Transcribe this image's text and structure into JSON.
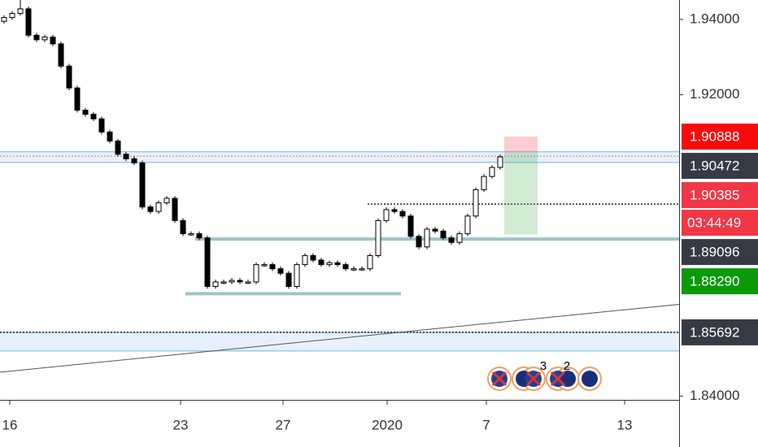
{
  "chart_data": {
    "type": "candlestick",
    "xlim": [
      0,
      83.5
    ],
    "ylim": [
      1.83899,
      1.94515
    ],
    "xticks": [
      {
        "value": 1.2,
        "label": "16"
      },
      {
        "value": 22.2,
        "label": "23"
      },
      {
        "value": 34.8,
        "label": "27"
      },
      {
        "value": 47.6,
        "label": "2020"
      },
      {
        "value": 59.8,
        "label": "7"
      },
      {
        "value": 76.8,
        "label": "13"
      }
    ],
    "yticks": [
      {
        "value": 1.94,
        "label": "1.94000"
      },
      {
        "value": 1.92,
        "label": "1.92000"
      },
      {
        "value": 1.84,
        "label": "1.84000"
      }
    ],
    "x": [
      0.5,
      1.5,
      2.5,
      3.5,
      4.5,
      5.5,
      6.5,
      7.5,
      8.5,
      9.5,
      10.5,
      11.5,
      12.5,
      13.5,
      14.5,
      15.5,
      16.5,
      17.5,
      18.5,
      19.5,
      20.5,
      21.5,
      22.5,
      23.5,
      24.5,
      25.5,
      26.5,
      27.5,
      28.5,
      29.5,
      30.5,
      31.5,
      32.5,
      33.5,
      34.5,
      35.5,
      36.5,
      37.5,
      38.5,
      39.5,
      40.5,
      41.5,
      42.5,
      43.5,
      44.5,
      45.5,
      46.5,
      47.5,
      48.5,
      49.5,
      50.5,
      51.5,
      52.5,
      53.5,
      54.5,
      55.5,
      56.5,
      57.5,
      58.5,
      59.5,
      60.5,
      61.5
    ],
    "open": [
      1.9395,
      1.9405,
      1.9416,
      1.9428,
      1.9358,
      1.9346,
      1.9353,
      1.9335,
      1.9276,
      1.9218,
      1.9159,
      1.9148,
      1.9136,
      1.9101,
      1.9077,
      1.9042,
      1.903,
      1.9019,
      1.8902,
      1.889,
      1.8913,
      1.8925,
      1.8866,
      1.8831,
      1.8831,
      1.882,
      1.8691,
      1.8703,
      1.8703,
      1.8707,
      1.8703,
      1.8703,
      1.8749,
      1.8749,
      1.8738,
      1.8726,
      1.8691,
      1.8749,
      1.8773,
      1.8761,
      1.8749,
      1.8754,
      1.8749,
      1.8738,
      1.8738,
      1.8738,
      1.8773,
      1.8866,
      1.8895,
      1.889,
      1.8878,
      1.8824,
      1.8796,
      1.8843,
      1.8838,
      1.882,
      1.8808,
      1.8831,
      1.8878,
      1.8948,
      1.8983,
      1.9007
    ],
    "high": [
      1.9411,
      1.9422,
      1.9452,
      1.9434,
      1.9364,
      1.9359,
      1.9359,
      1.9341,
      1.9282,
      1.9224,
      1.9165,
      1.9154,
      1.9142,
      1.9107,
      1.9083,
      1.9048,
      1.9036,
      1.9025,
      1.8908,
      1.8919,
      1.8931,
      1.8931,
      1.8872,
      1.8837,
      1.8837,
      1.8826,
      1.8709,
      1.8709,
      1.8713,
      1.8713,
      1.8709,
      1.8755,
      1.8755,
      1.8755,
      1.8744,
      1.8732,
      1.8755,
      1.8779,
      1.8779,
      1.8767,
      1.876,
      1.876,
      1.8755,
      1.8744,
      1.8744,
      1.8779,
      1.8872,
      1.8901,
      1.8901,
      1.8896,
      1.8884,
      1.883,
      1.8849,
      1.8849,
      1.8844,
      1.8826,
      1.8837,
      1.8884,
      1.8954,
      1.8989,
      1.9013,
      1.9041
    ],
    "low": [
      1.9389,
      1.9399,
      1.941,
      1.9352,
      1.934,
      1.934,
      1.9329,
      1.927,
      1.9212,
      1.9153,
      1.9142,
      1.913,
      1.9095,
      1.9071,
      1.9036,
      1.9024,
      1.9013,
      1.8896,
      1.8884,
      1.8884,
      1.8907,
      1.886,
      1.8825,
      1.8825,
      1.8814,
      1.8685,
      1.8685,
      1.8697,
      1.8697,
      1.8697,
      1.8697,
      1.8697,
      1.8743,
      1.8732,
      1.872,
      1.8685,
      1.8685,
      1.8743,
      1.8755,
      1.8743,
      1.8743,
      1.8743,
      1.8732,
      1.8732,
      1.8732,
      1.8732,
      1.8767,
      1.886,
      1.8884,
      1.8872,
      1.8818,
      1.879,
      1.879,
      1.8832,
      1.8814,
      1.8802,
      1.8802,
      1.8825,
      1.8872,
      1.8942,
      1.8977,
      1.9001
    ],
    "close": [
      1.9405,
      1.9416,
      1.9428,
      1.9358,
      1.9346,
      1.9353,
      1.9335,
      1.9276,
      1.9218,
      1.9159,
      1.9148,
      1.9136,
      1.9101,
      1.9077,
      1.9042,
      1.903,
      1.9019,
      1.8902,
      1.889,
      1.8913,
      1.8925,
      1.8866,
      1.8831,
      1.8831,
      1.882,
      1.8691,
      1.8703,
      1.8703,
      1.8707,
      1.8703,
      1.8703,
      1.8749,
      1.8749,
      1.8738,
      1.8726,
      1.8691,
      1.8749,
      1.8773,
      1.8761,
      1.8749,
      1.8754,
      1.8749,
      1.8738,
      1.8738,
      1.8738,
      1.8773,
      1.8866,
      1.8895,
      1.889,
      1.8878,
      1.8824,
      1.8796,
      1.8843,
      1.8838,
      1.882,
      1.8808,
      1.8831,
      1.8878,
      1.8948,
      1.8983,
      1.9007,
      1.9035
    ],
    "zones": [
      {
        "from": 1.90487,
        "to": 1.90206,
        "color": "#e6f1fb",
        "border": "#9ccbe8"
      },
      {
        "from": 1.85692,
        "to": 1.852,
        "color": "#e6f1fb",
        "border": "#9ccbe8"
      }
    ],
    "lines": [
      {
        "y": 1.9037,
        "x0": 0,
        "x1": 83.5,
        "color": "#e07070",
        "style": "dotted",
        "width": 1
      },
      {
        "y": 1.89096,
        "x0": 45.2,
        "x1": 83.5,
        "color": "#222",
        "style": "dotted",
        "width": 1.5
      },
      {
        "y": 1.85692,
        "x0": 0,
        "x1": 83.5,
        "color": "#222",
        "style": "dotted",
        "width": 1.5
      },
      {
        "y": 1.88169,
        "x0": 24,
        "x1": 83.5,
        "color": "#9fc3c3",
        "style": "solid",
        "width": 4
      },
      {
        "y": 1.86717,
        "x0": 22.8,
        "x1": 49.3,
        "color": "#9fc3c3",
        "style": "solid",
        "width": 4
      }
    ],
    "trendline": {
      "x0": 0,
      "y0": 1.84633,
      "x1": 83.5,
      "y1": 1.86435,
      "color": "#555"
    },
    "position": {
      "x0": 62,
      "x1": 66.1,
      "stop": 1.90888,
      "entry": 1.90472,
      "target": 1.8829
    },
    "price_tags": [
      {
        "value": 1.90888,
        "color": "#f70a0a"
      },
      {
        "value": 1.90472,
        "color": "#363a45"
      },
      {
        "value": 1.90385,
        "color": "#f23645"
      },
      {
        "value": 1.89096,
        "color": "#363a45"
      },
      {
        "value": 1.8829,
        "label": "1.88290",
        "color": "#0a9a0a"
      },
      {
        "value": 1.85692,
        "color": "#363a45"
      }
    ],
    "countdown": "03:44:49",
    "event_counts": [
      3,
      2
    ]
  }
}
